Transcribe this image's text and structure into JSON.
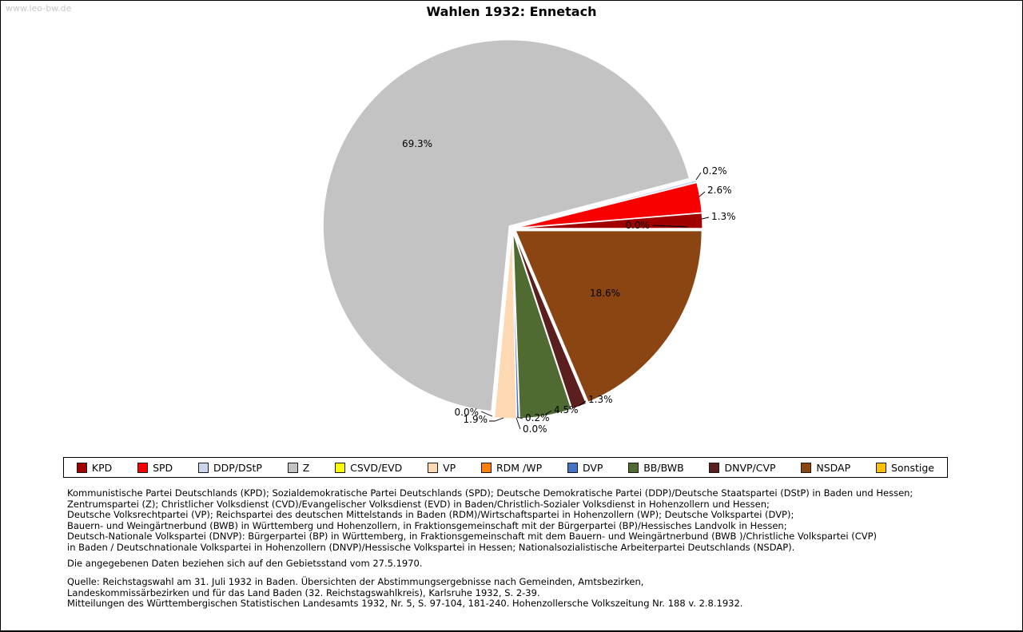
{
  "watermark": "www.leo-bw.de",
  "title": "Wahlen 1932: Ennetach",
  "chart_data": {
    "type": "pie",
    "title": "Wahlen 1932: Ennetach",
    "unit": "%",
    "legend_position": "bottom",
    "series": [
      {
        "label": "KPD",
        "value": 1.3,
        "color": "#a00000"
      },
      {
        "label": "SPD",
        "value": 2.6,
        "color": "#f80000"
      },
      {
        "label": "DDP/DStP",
        "value": 0.2,
        "color": "#ccd5ee"
      },
      {
        "label": "Z",
        "value": 69.3,
        "color": "#c3c3c3"
      },
      {
        "label": "CSVD/EVD",
        "value": 0.0,
        "color": "#ffff00"
      },
      {
        "label": "VP",
        "value": 1.9,
        "color": "#ffd9b3"
      },
      {
        "label": "RDM /WP",
        "value": 0.0,
        "color": "#ff8000"
      },
      {
        "label": "DVP",
        "value": 0.2,
        "color": "#4472c4"
      },
      {
        "label": "BB/BWB",
        "value": 4.5,
        "color": "#4f6b31"
      },
      {
        "label": "DNVP/CVP",
        "value": 1.3,
        "color": "#5c1f1f"
      },
      {
        "label": "NSDAP",
        "value": 18.6,
        "color": "#8b4513"
      },
      {
        "label": "Sonstige",
        "value": 0.0,
        "color": "#ffc000"
      }
    ]
  },
  "footnotes": {
    "party_description_lines": [
      "Kommunistische Partei Deutschlands (KPD); Sozialdemokratische Partei Deutschlands (SPD); Deutsche Demokratische Partei (DDP)/Deutsche Staatspartei (DStP) in Baden und Hessen;",
      "Zentrumspartei (Z); Christlicher Volksdienst (CVD)/Evangelischer Volksdienst (EVD) in Baden/Christlich-Sozialer Volksdienst in Hohenzollern und Hessen;",
      "Deutsche Volksrechtpartei (VP); Reichspartei des deutschen Mittelstands in Baden (RDM)/Wirtschaftspartei in Hohenzollern (WP); Deutsche Volkspartei (DVP);",
      "Bauern- und Weingärtnerbund (BWB) in Württemberg und Hohenzollern, in Fraktionsgemeinschaft mit der Bürgerpartei (BP)/Hessisches Landvolk in Hessen;",
      "Deutsch-Nationale Volkspartei (DNVP): Bürgerpartei (BP) in Württemberg, in Fraktionsgemeinschaft mit dem Bauern- und Weingärtnerbund (BWB )/Christliche Volkspartei (CVP)",
      "in Baden / Deutschnationale Volkspartei in Hohenzollern (DNVP)/Hessische Volkspartei in Hessen; Nationalsozialistische Arbeiterpartei Deutschlands (NSDAP)."
    ],
    "territory_note": "Die angegebenen Daten beziehen sich auf den Gebietsstand vom 27.5.1970.",
    "source_lines": [
      "Quelle: Reichstagswahl am 31. Juli 1932 in Baden. Übersichten der Abstimmungsergebnisse nach Gemeinden, Amtsbezirken,",
      "Landeskommissärbezirken und für das Land Baden (32. Reichstagswahlkreis), Karlsruhe 1932, S. 2-39.",
      "Mitteilungen des Württembergischen Statistischen Landesamts 1932, Nr. 5, S. 97-104, 181-240. Hohenzollersche Volkszeitung Nr. 188 v. 2.8.1932."
    ]
  }
}
